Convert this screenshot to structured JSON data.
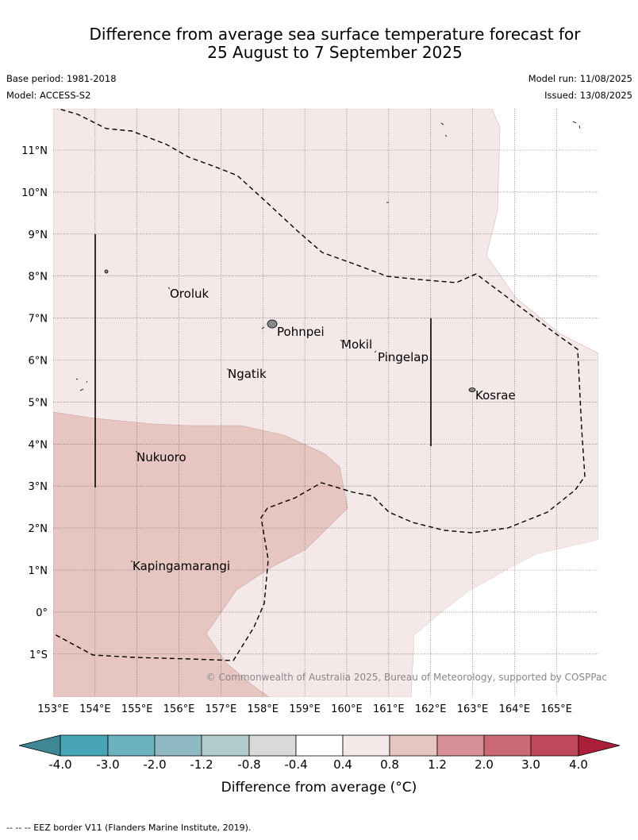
{
  "header": {
    "title_line1": "Difference from average sea surface temperature forecast for",
    "title_line2": "25 August to 7 September 2025",
    "base_period": "Base period: 1981-2018",
    "model": "Model: ACCESS-S2",
    "model_run": "Model run: 11/08/2025",
    "issued": "Issued: 13/08/2025"
  },
  "map": {
    "lon_labels": [
      "153°E",
      "154°E",
      "155°E",
      "156°E",
      "157°E",
      "158°E",
      "159°E",
      "160°E",
      "161°E",
      "162°E",
      "163°E",
      "164°E",
      "165°E"
    ],
    "lat_labels": [
      "11°N",
      "10°N",
      "9°N",
      "8°N",
      "7°N",
      "6°N",
      "5°N",
      "4°N",
      "3°N",
      "2°N",
      "1°N",
      "0°",
      "1°S"
    ],
    "places": [
      "Oroluk",
      "Pohnpei",
      "Mokil",
      "Pingelap",
      "Ngatik",
      "Kosrae",
      "Nukuoro",
      "Kapingamarangi"
    ],
    "copyright": "© Commonwealth of Australia 2025, Bureau of Meteorology, supported by COSPPac",
    "fill_colors": {
      "band_0_4_to_0_8": "#f5e8e8",
      "band_0_8_to_1_2": "#e7c6c2"
    }
  },
  "colorbar": {
    "label": "Difference from average (°C)",
    "ticks": [
      "-4.0",
      "-3.0",
      "-2.0",
      "-1.2",
      "-0.8",
      "-0.4",
      "0.4",
      "0.8",
      "1.2",
      "2.0",
      "3.0",
      "4.0"
    ],
    "colors": [
      "#3e8795",
      "#48a5b5",
      "#6cb2bf",
      "#8fbac4",
      "#b2cbcd",
      "#d9d9d9",
      "#ffffff",
      "#f5e8e8",
      "#e7c6c2",
      "#d78f96",
      "#ca6a74",
      "#c0485a",
      "#ac1d3a"
    ]
  },
  "footer": {
    "note": "--  --  -- EEZ border V11 (Flanders Marine Institute, 2019)."
  }
}
